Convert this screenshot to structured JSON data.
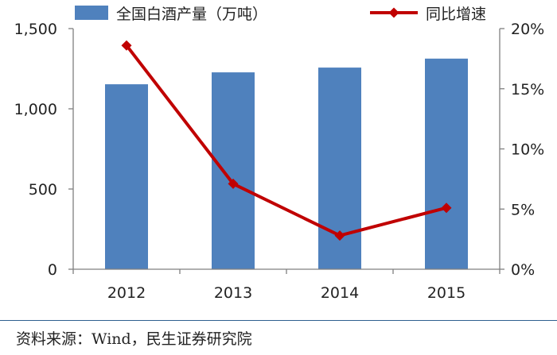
{
  "chart_data": {
    "type": "bar+line",
    "title": "",
    "categories": [
      "2012",
      "2013",
      "2014",
      "2015"
    ],
    "series": [
      {
        "name": "全国白酒产量（万吨）",
        "type": "bar",
        "axis": "left",
        "values": [
          1153,
          1227,
          1257,
          1313
        ]
      },
      {
        "name": "同比增速",
        "type": "line",
        "axis": "right",
        "values": [
          0.186,
          0.071,
          0.028,
          0.051
        ]
      }
    ],
    "yaxis_left": {
      "min": 0,
      "max": 1500,
      "ticks": [
        0,
        500,
        1000,
        1500
      ],
      "tick_labels": [
        "0",
        "500",
        "1,000",
        "1,500"
      ]
    },
    "yaxis_right": {
      "min": 0,
      "max": 0.2,
      "ticks": [
        0,
        0.05,
        0.1,
        0.15,
        0.2
      ],
      "tick_labels": [
        "0%",
        "5%",
        "10%",
        "15%",
        "20%"
      ]
    },
    "grid": false,
    "legend": "top",
    "colors": {
      "bar": "#4f81bd",
      "line": "#c00000"
    }
  },
  "source": "资料来源：Wind，民生证券研究院"
}
